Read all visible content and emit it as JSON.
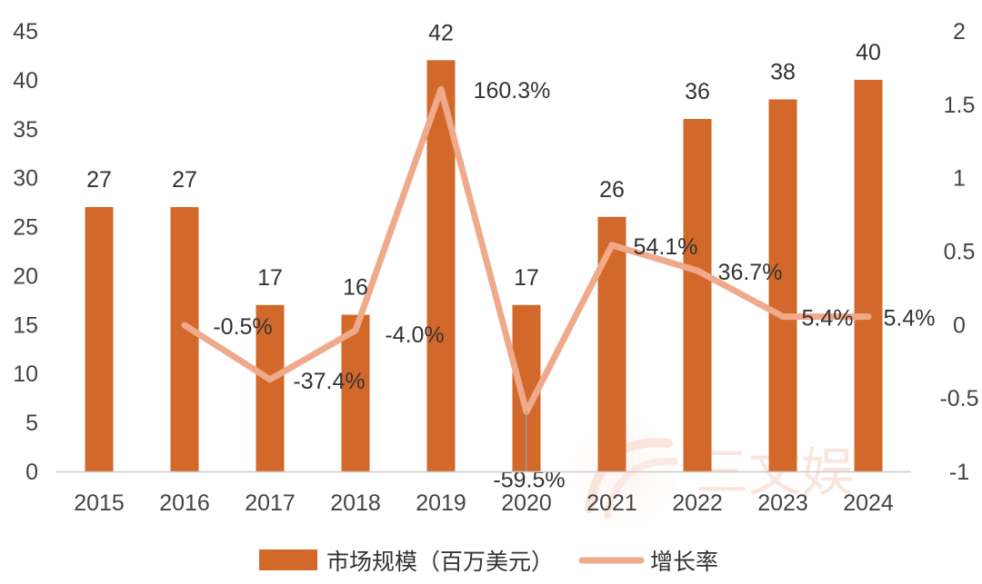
{
  "chart_data": {
    "type": "bar+line",
    "categories": [
      "2015",
      "2016",
      "2017",
      "2018",
      "2019",
      "2020",
      "2021",
      "2022",
      "2023",
      "2024"
    ],
    "series": [
      {
        "name": "市场规模（百万美元）",
        "type": "bar",
        "axis": "left",
        "values": [
          27,
          27,
          17,
          16,
          42,
          17,
          26,
          36,
          38,
          40
        ],
        "labels": [
          "27",
          "27",
          "17",
          "16",
          "42",
          "17",
          "26",
          "36",
          "38",
          "40"
        ],
        "color": "#D2692A"
      },
      {
        "name": "增长率",
        "type": "line",
        "axis": "right",
        "values": [
          null,
          -0.005,
          -0.374,
          -0.04,
          1.603,
          -0.595,
          0.541,
          0.367,
          0.054,
          0.054
        ],
        "labels": [
          "",
          "-0.5%",
          "-37.4%",
          "-4.0%",
          "160.3%",
          "-59.5%",
          "54.1%",
          "36.7%",
          "5.4%",
          "5.4%"
        ],
        "color": "#EFA98B"
      }
    ],
    "y_left": {
      "ticks": [
        "0",
        "5",
        "10",
        "15",
        "20",
        "25",
        "30",
        "35",
        "40",
        "45"
      ],
      "lim": [
        0,
        45
      ]
    },
    "y_right": {
      "ticks": [
        "-1",
        "-0.5",
        "0",
        "0.5",
        "1",
        "1.5",
        "2"
      ],
      "lim": [
        -1,
        2
      ]
    },
    "highlight_color": "#C00000",
    "highlight_index": 5,
    "watermark": "三文娱",
    "legend": {
      "position": "bottom"
    }
  }
}
